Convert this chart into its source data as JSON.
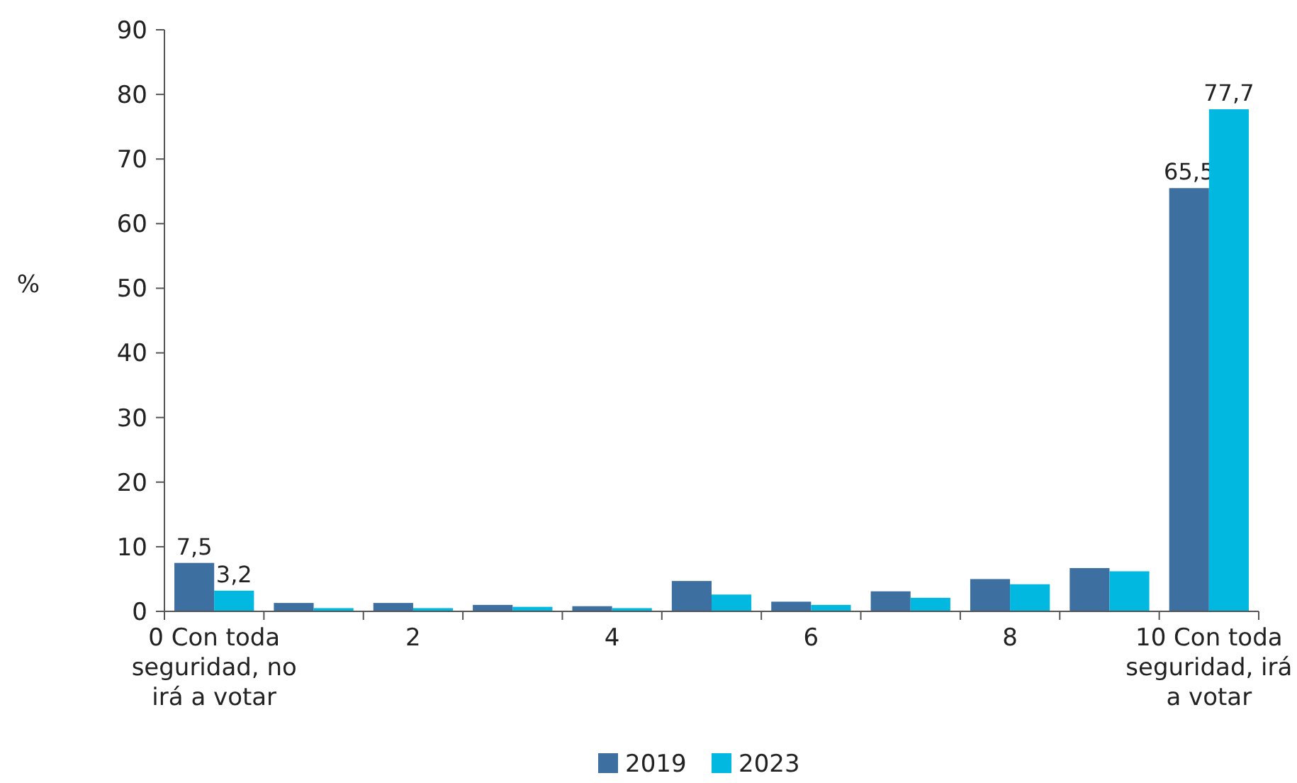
{
  "chart_data": {
    "type": "bar",
    "ylabel": "%",
    "categories": [
      "0 Con toda seguridad, no irá a votar",
      null,
      "2",
      null,
      "4",
      null,
      "6",
      null,
      "8",
      null,
      "10 Con toda seguridad, irá a votar"
    ],
    "series": [
      {
        "name": "2019",
        "color": "#3d6fa0",
        "values": [
          7.5,
          1.3,
          1.3,
          1.0,
          0.8,
          4.7,
          1.5,
          3.1,
          5.0,
          6.7,
          65.5
        ],
        "value_labels": [
          "7,5",
          null,
          null,
          null,
          null,
          null,
          null,
          null,
          null,
          null,
          "65,5"
        ]
      },
      {
        "name": "2023",
        "color": "#00b8e0",
        "values": [
          3.2,
          0.5,
          0.5,
          0.7,
          0.5,
          2.6,
          1.0,
          2.1,
          4.2,
          6.2,
          77.7
        ],
        "value_labels": [
          "3,2",
          null,
          null,
          null,
          null,
          null,
          null,
          null,
          null,
          null,
          "77,7"
        ]
      }
    ],
    "ylim": [
      0,
      90
    ],
    "yticks": [
      0,
      10,
      20,
      30,
      40,
      50,
      60,
      70,
      80,
      90
    ],
    "grid": false,
    "legend": "bottom"
  }
}
